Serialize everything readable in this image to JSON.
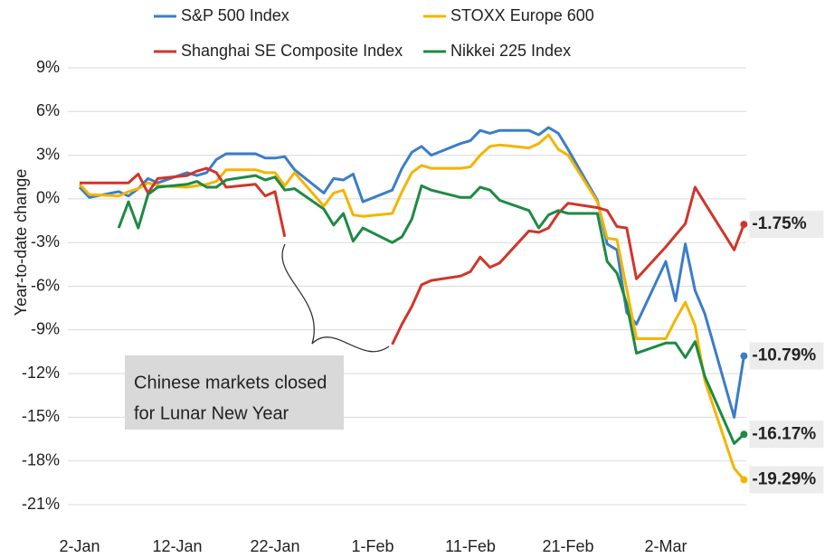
{
  "chart_data": {
    "type": "line",
    "y_label": "Year-to-date change",
    "x": [
      "2-Jan",
      "3-Jan",
      "6-Jan",
      "7-Jan",
      "8-Jan",
      "9-Jan",
      "10-Jan",
      "13-Jan",
      "14-Jan",
      "15-Jan",
      "16-Jan",
      "17-Jan",
      "20-Jan",
      "21-Jan",
      "22-Jan",
      "23-Jan",
      "24-Jan",
      "27-Jan",
      "28-Jan",
      "29-Jan",
      "30-Jan",
      "31-Jan",
      "3-Feb",
      "4-Feb",
      "5-Feb",
      "6-Feb",
      "7-Feb",
      "10-Feb",
      "11-Feb",
      "12-Feb",
      "13-Feb",
      "14-Feb",
      "17-Feb",
      "18-Feb",
      "19-Feb",
      "20-Feb",
      "21-Feb",
      "24-Feb",
      "25-Feb",
      "26-Feb",
      "27-Feb",
      "28-Feb",
      "2-Mar",
      "3-Mar",
      "4-Mar",
      "5-Mar",
      "6-Mar",
      "9-Mar",
      "10-Mar"
    ],
    "xticks": [
      "2-Jan",
      "12-Jan",
      "22-Jan",
      "1-Feb",
      "11-Feb",
      "21-Feb",
      "2-Mar"
    ],
    "ylim": [
      -21,
      9
    ],
    "yticks": [
      {
        "value": -21,
        "label": "-21%"
      },
      {
        "value": -18,
        "label": "-18%"
      },
      {
        "value": -15,
        "label": "-15%"
      },
      {
        "value": -12,
        "label": "-12%"
      },
      {
        "value": -9,
        "label": "-9%"
      },
      {
        "value": -6,
        "label": "-6%"
      },
      {
        "value": -3,
        "label": "-3%"
      },
      {
        "value": 0,
        "label": "0%"
      },
      {
        "value": 3,
        "label": "3%"
      },
      {
        "value": 6,
        "label": "6%"
      },
      {
        "value": 9,
        "label": "9%"
      }
    ],
    "grid": true,
    "legend": "top",
    "annotation": [
      "Chinese markets closed",
      "for Lunar New Year"
    ],
    "series": [
      {
        "name": "S&P 500 Index",
        "color": "#3b7dc8",
        "values": [
          0.8,
          0.1,
          0.5,
          0.2,
          0.7,
          1.4,
          1.1,
          1.8,
          1.6,
          1.8,
          2.7,
          3.1,
          3.1,
          2.8,
          2.8,
          2.9,
          2.0,
          0.4,
          1.4,
          1.3,
          1.7,
          -0.2,
          0.6,
          2.1,
          3.2,
          3.6,
          3.0,
          3.8,
          4.0,
          4.7,
          4.5,
          4.7,
          4.7,
          4.4,
          4.9,
          4.5,
          3.4,
          -0.1,
          -3.1,
          -3.5,
          -7.8,
          -8.6,
          -4.3,
          -7.0,
          -3.1,
          -6.3,
          -7.9,
          -15.0,
          -10.79
        ],
        "value_labels": [
          null,
          null,
          null,
          null,
          null,
          null,
          null,
          null,
          null,
          null,
          null,
          null,
          null,
          null,
          null,
          null,
          null,
          null,
          null,
          null,
          null,
          null,
          null,
          null,
          null,
          null,
          null,
          null,
          null,
          null,
          null,
          null,
          null,
          null,
          null,
          null,
          null,
          null,
          null,
          null,
          null,
          null,
          null,
          null,
          null,
          null,
          null,
          null,
          "-10.79%"
        ]
      },
      {
        "name": "STOXX Europe 600",
        "color": "#f4b400",
        "values": [
          1.0,
          0.3,
          0.2,
          0.5,
          0.7,
          1.1,
          0.9,
          0.8,
          0.9,
          1.0,
          1.2,
          2.0,
          2.0,
          1.8,
          1.8,
          0.9,
          1.8,
          -0.5,
          0.4,
          0.6,
          -1.1,
          -1.2,
          -1.0,
          0.5,
          1.8,
          2.3,
          2.1,
          2.1,
          2.2,
          3.0,
          3.6,
          3.7,
          3.5,
          3.8,
          4.4,
          3.4,
          3.0,
          -0.2,
          -2.7,
          -2.8,
          -6.2,
          -9.6,
          -9.6,
          -8.3,
          -7.1,
          -8.7,
          -12.5,
          -18.5,
          -19.29
        ],
        "value_labels": [
          null,
          null,
          null,
          null,
          null,
          null,
          null,
          null,
          null,
          null,
          null,
          null,
          null,
          null,
          null,
          null,
          null,
          null,
          null,
          null,
          null,
          null,
          null,
          null,
          null,
          null,
          null,
          null,
          null,
          null,
          null,
          null,
          null,
          null,
          null,
          null,
          null,
          null,
          null,
          null,
          null,
          null,
          null,
          null,
          null,
          null,
          null,
          null,
          "-19.29%"
        ]
      },
      {
        "name": "Shanghai SE Composite Index",
        "color": "#d0352b",
        "values": [
          1.1,
          1.1,
          1.1,
          1.1,
          1.7,
          0.4,
          1.4,
          1.6,
          1.9,
          2.1,
          1.8,
          0.8,
          1.0,
          0.2,
          0.5,
          -2.6,
          null,
          null,
          null,
          null,
          null,
          null,
          -10.0,
          -8.6,
          -7.4,
          -5.9,
          -5.6,
          -5.3,
          -5.0,
          -4.0,
          -4.7,
          -4.4,
          -2.2,
          -2.3,
          -2.0,
          -1.0,
          -0.3,
          -0.6,
          -0.8,
          -1.9,
          -2.0,
          -5.5,
          -3.3,
          -2.5,
          -1.7,
          0.8,
          -0.3,
          -3.5,
          -1.75
        ],
        "value_labels": [
          null,
          null,
          null,
          null,
          null,
          null,
          null,
          null,
          null,
          null,
          null,
          null,
          null,
          null,
          null,
          null,
          null,
          null,
          null,
          null,
          null,
          null,
          null,
          null,
          null,
          null,
          null,
          null,
          null,
          null,
          null,
          null,
          null,
          null,
          null,
          null,
          null,
          null,
          null,
          null,
          null,
          null,
          null,
          null,
          null,
          null,
          null,
          null,
          "-1.75%"
        ]
      },
      {
        "name": "Nikkei 225 Index",
        "color": "#1e8a44",
        "values": [
          null,
          null,
          -2.0,
          -0.2,
          -2.0,
          0.3,
          0.8,
          1.0,
          1.2,
          0.8,
          0.8,
          1.3,
          1.6,
          1.3,
          1.5,
          0.6,
          0.7,
          -0.7,
          -1.8,
          -1.0,
          -2.9,
          -2.0,
          -3.0,
          -2.6,
          -1.4,
          0.9,
          0.6,
          0.1,
          0.1,
          0.8,
          0.6,
          -0.1,
          -0.8,
          -2.0,
          -1.1,
          -0.8,
          -1.0,
          -1.0,
          -4.3,
          -5.1,
          -7.2,
          -10.6,
          -9.9,
          -9.9,
          -10.9,
          -9.8,
          -12.2,
          -16.8,
          -16.17
        ],
        "value_labels": [
          null,
          null,
          null,
          null,
          null,
          null,
          null,
          null,
          null,
          null,
          null,
          null,
          null,
          null,
          null,
          null,
          null,
          null,
          null,
          null,
          null,
          null,
          null,
          null,
          null,
          null,
          null,
          null,
          null,
          null,
          null,
          null,
          null,
          null,
          null,
          null,
          null,
          null,
          null,
          null,
          null,
          null,
          null,
          null,
          null,
          null,
          null,
          null,
          "-16.17%"
        ]
      }
    ]
  }
}
